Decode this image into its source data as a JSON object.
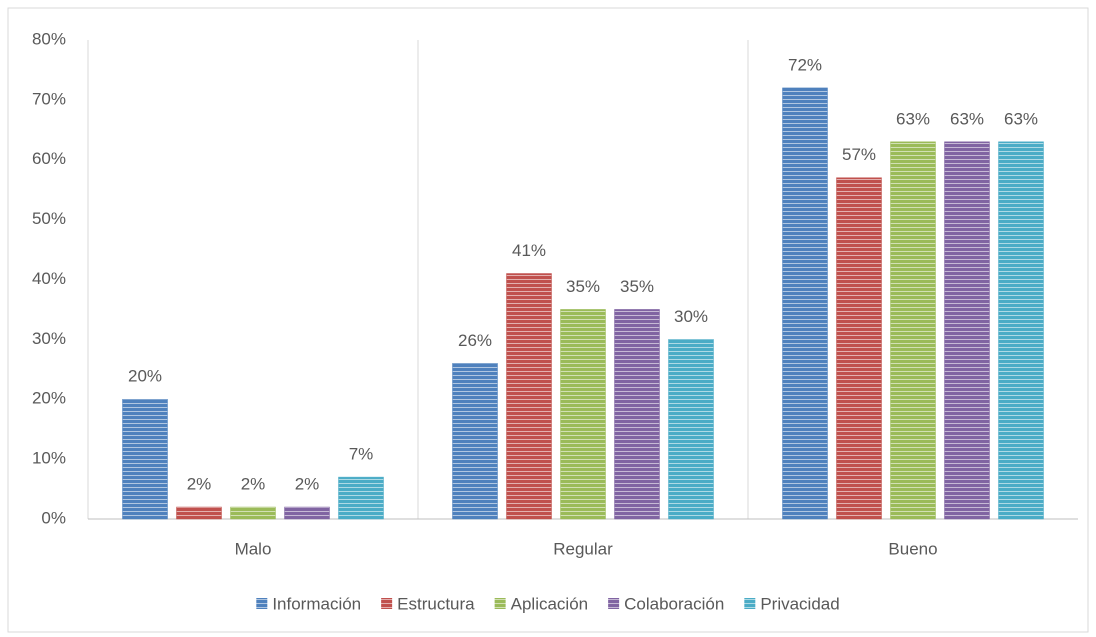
{
  "chart_data": {
    "type": "bar",
    "categories": [
      "Malo",
      "Regular",
      "Bueno"
    ],
    "series": [
      {
        "name": "Información",
        "color": "#4f81bd",
        "values": [
          20,
          26,
          72
        ],
        "value_labels": [
          "20%",
          "26%",
          "72%"
        ]
      },
      {
        "name": "Estructura",
        "color": "#c0504d",
        "values": [
          2,
          41,
          57
        ],
        "value_labels": [
          "2%",
          "41%",
          "57%"
        ]
      },
      {
        "name": "Aplicación",
        "color": "#9bbb59",
        "values": [
          2,
          35,
          63
        ],
        "value_labels": [
          "2%",
          "35%",
          "63%"
        ]
      },
      {
        "name": "Colaboración",
        "color": "#8064a2",
        "values": [
          2,
          35,
          63
        ],
        "value_labels": [
          "2%",
          "35%",
          "63%"
        ]
      },
      {
        "name": "Privacidad",
        "color": "#4bacc6",
        "values": [
          7,
          30,
          63
        ],
        "value_labels": [
          "7%",
          "30%",
          "63%"
        ]
      }
    ],
    "ylim": [
      0,
      80
    ],
    "yticks": [
      {
        "value": 0,
        "label": "0%"
      },
      {
        "value": 10,
        "label": "10%"
      },
      {
        "value": 20,
        "label": "20%"
      },
      {
        "value": 30,
        "label": "30%"
      },
      {
        "value": 40,
        "label": "40%"
      },
      {
        "value": 50,
        "label": "50%"
      },
      {
        "value": 60,
        "label": "60%"
      },
      {
        "value": 70,
        "label": "70%"
      },
      {
        "value": 80,
        "label": "80%"
      }
    ],
    "legend": "bottom"
  }
}
